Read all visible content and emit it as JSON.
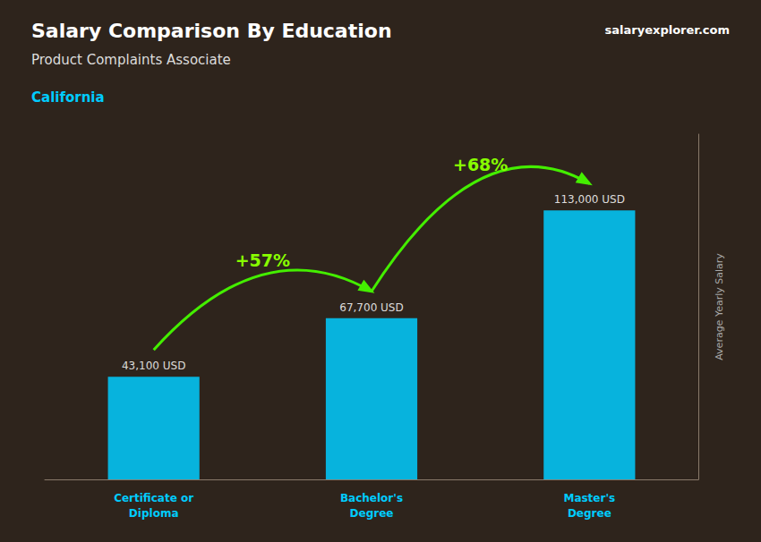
{
  "chart_data": {
    "type": "bar",
    "title": "Salary Comparison By Education",
    "subtitle": "Product Complaints Associate",
    "annotations": [
      "California",
      "salaryexplorer.com",
      "+57%",
      "+68%"
    ],
    "ylabel": "Average Yearly Salary",
    "categories": [
      "Certificate or\nDiploma",
      "Bachelor's\nDegree",
      "Master's\nDegree"
    ],
    "values": [
      43100,
      67700,
      113000
    ],
    "value_labels": [
      "43,100 USD",
      "67,700 USD",
      "113,000 USD"
    ],
    "data_labels": true,
    "color": "#00ccff",
    "ylim": [
      0,
      145000
    ],
    "tick_labels": "x",
    "grid": false
  }
}
